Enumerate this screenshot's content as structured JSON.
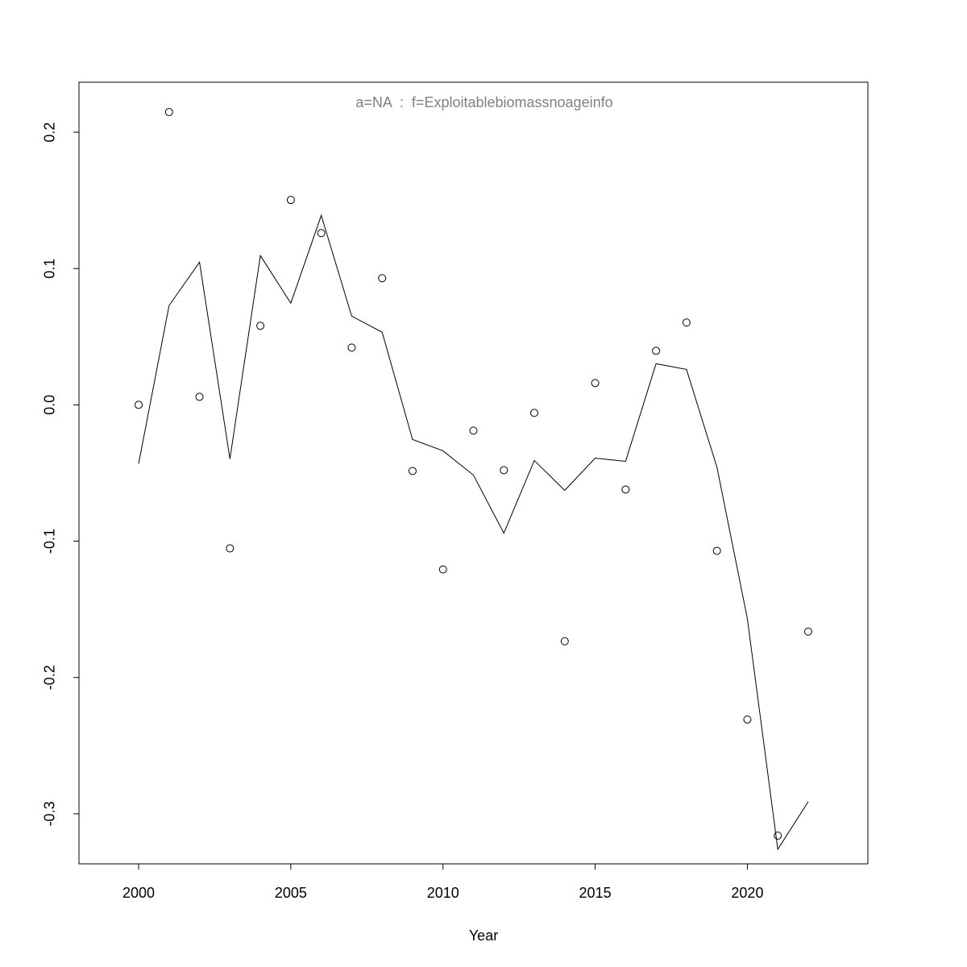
{
  "chart_data": {
    "type": "scatter",
    "title": "a=NA  :  f=Exploitablebiomassnoageinfo",
    "title_color": "#808080",
    "x_label": "Year",
    "x": [
      2000,
      2001,
      2002,
      2003,
      2004,
      2005,
      2006,
      2007,
      2008,
      2009,
      2010,
      2011,
      2012,
      2013,
      2014,
      2015,
      2016,
      2017,
      2018,
      2019,
      2020,
      2021,
      2022
    ],
    "series": [
      {
        "mark": "points",
        "color": "#000000",
        "values": [
          0,
          0.2148,
          0.0059,
          -0.1053,
          0.058,
          0.1503,
          0.126,
          0.042,
          0.0929,
          -0.0485,
          -0.1207,
          -0.0189,
          -0.0479,
          -0.0059,
          -0.1734,
          0.016,
          -0.0621,
          0.0396,
          0.0604,
          -0.1071,
          -0.2308,
          -0.316,
          -0.1663
        ]
      },
      {
        "mark": "line",
        "color": "#000000",
        "values": [
          -0.0432,
          0.0728,
          0.1047,
          -0.0396,
          0.1095,
          0.0746,
          0.139,
          0.0651,
          0.0533,
          -0.0254,
          -0.0337,
          -0.0515,
          -0.0941,
          -0.0408,
          -0.0627,
          -0.0391,
          -0.0414,
          0.0302,
          0.026,
          -0.0456,
          -0.1568,
          -0.326,
          -0.2911
        ]
      }
    ],
    "xlim": [
      1998.04,
      2023.96
    ],
    "ylim": [
      -0.3367,
      0.2367
    ],
    "xticks": [
      2000,
      2005,
      2010,
      2015,
      2020
    ],
    "yticks": [
      -0.3,
      -0.2,
      -0.1,
      {
        "value": 0,
        "label": "0.0"
      },
      0.1,
      0.2
    ]
  }
}
